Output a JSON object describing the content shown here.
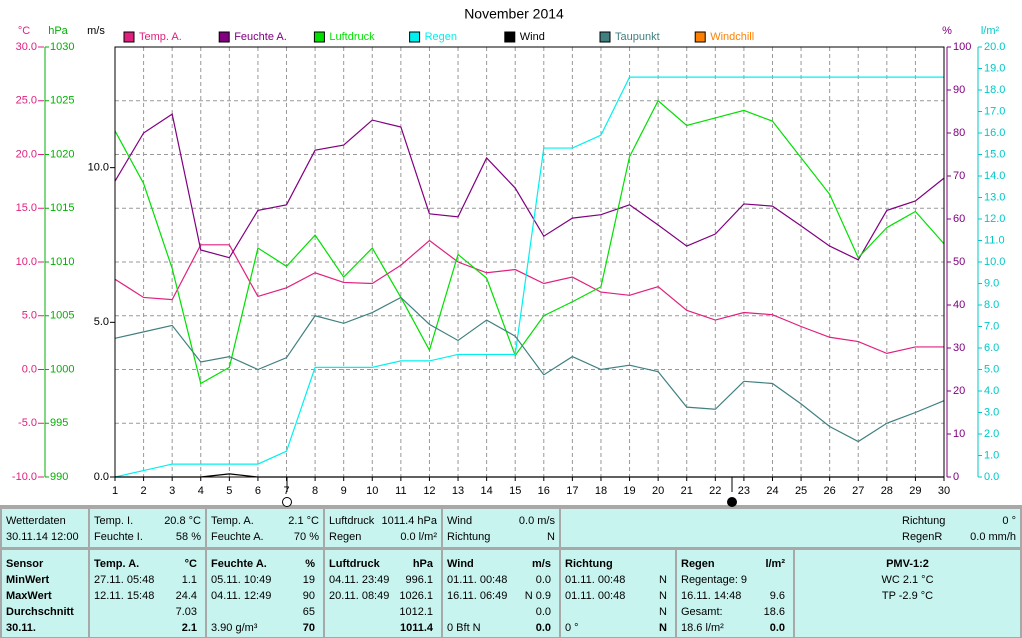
{
  "chart_data": {
    "type": "line",
    "title": "November 2014",
    "grid": true,
    "x": [
      1,
      2,
      3,
      4,
      5,
      6,
      7,
      8,
      9,
      10,
      11,
      12,
      13,
      14,
      15,
      16,
      17,
      18,
      19,
      20,
      21,
      22,
      23,
      24,
      25,
      26,
      27,
      28,
      29,
      30
    ],
    "xlim": [
      1,
      30
    ],
    "xticks": [
      1,
      2,
      3,
      4,
      5,
      6,
      7,
      8,
      9,
      10,
      11,
      12,
      13,
      14,
      15,
      16,
      17,
      18,
      19,
      20,
      21,
      22,
      23,
      24,
      25,
      26,
      27,
      28,
      29,
      30
    ],
    "axes": [
      {
        "unit": "°C",
        "color": "#e0207e",
        "ylim": [
          -10,
          30
        ],
        "yticks": [
          {
            "value": 30,
            "label": "30.0"
          },
          {
            "value": 25,
            "label": "25.0"
          },
          {
            "value": 20,
            "label": "20.0"
          },
          {
            "value": 15,
            "label": "15.0"
          },
          {
            "value": 10,
            "label": "10.0"
          },
          {
            "value": 5,
            "label": "5.0"
          },
          {
            "value": 0,
            "label": "0.0"
          },
          {
            "value": -5,
            "label": "-5.0"
          },
          {
            "value": -10,
            "label": "-10.0"
          }
        ]
      },
      {
        "unit": "hPa",
        "color": "#00b000",
        "ylim": [
          990,
          1030
        ],
        "yticks": [
          1030,
          1025,
          1020,
          1015,
          1010,
          1005,
          1000,
          995,
          990
        ]
      },
      {
        "unit": "m/s",
        "color": "#000000",
        "ylim": [
          0,
          13.9
        ],
        "yticks": [
          {
            "value": 10,
            "label": "10.0"
          },
          {
            "value": 5,
            "label": "5.0"
          },
          {
            "value": 0,
            "label": "0.0"
          }
        ]
      },
      {
        "unit": "%",
        "color": "#800080",
        "ylim": [
          0,
          100
        ],
        "yticks": [
          100,
          90,
          80,
          70,
          60,
          50,
          40,
          30,
          20,
          10,
          0
        ]
      },
      {
        "unit": "l/m²",
        "color": "#00c8c8",
        "ylim": [
          0,
          20
        ],
        "yticks": [
          {
            "value": 20,
            "label": "20.0"
          },
          {
            "value": 19,
            "label": "19.0"
          },
          {
            "value": 18,
            "label": "18.0"
          },
          {
            "value": 17,
            "label": "17.0"
          },
          {
            "value": 16,
            "label": "16.0"
          },
          {
            "value": 15,
            "label": "15.0"
          },
          {
            "value": 14,
            "label": "14.0"
          },
          {
            "value": 13,
            "label": "13.0"
          },
          {
            "value": 12,
            "label": "12.0"
          },
          {
            "value": 11,
            "label": "11.0"
          },
          {
            "value": 10,
            "label": "10.0"
          },
          {
            "value": 9,
            "label": "9.0"
          },
          {
            "value": 8,
            "label": "8.0"
          },
          {
            "value": 7,
            "label": "7.0"
          },
          {
            "value": 6,
            "label": "6.0"
          },
          {
            "value": 5,
            "label": "5.0"
          },
          {
            "value": 4,
            "label": "4.0"
          },
          {
            "value": 3,
            "label": "3.0"
          },
          {
            "value": 2,
            "label": "2.0"
          },
          {
            "value": 1,
            "label": "1.0"
          },
          {
            "value": 0,
            "label": "0.0"
          }
        ]
      }
    ],
    "series": [
      {
        "name": "Temp. A.",
        "color": "#e0207e",
        "axis": "°C",
        "values": [
          8.4,
          6.7,
          6.5,
          11.6,
          11.6,
          6.8,
          7.6,
          9.0,
          8.1,
          8.0,
          9.7,
          12.0,
          10.0,
          9.0,
          9.3,
          8.0,
          8.6,
          7.2,
          6.9,
          7.7,
          5.5,
          4.6,
          5.3,
          5.1,
          4.0,
          3.0,
          2.6,
          1.5,
          2.1,
          2.1
        ]
      },
      {
        "name": "Feuchte A.",
        "color": "#800080",
        "axis": "%",
        "values": [
          68.8,
          80,
          84.4,
          52.8,
          51,
          62,
          63.3,
          76,
          77.2,
          83,
          81.4,
          61.2,
          60.5,
          74.2,
          67.2,
          56,
          60.2,
          61,
          63.3,
          58.6,
          53.7,
          56.5,
          63.5,
          63,
          58.4,
          53.7,
          50.5,
          62,
          64.2,
          69.5
        ]
      },
      {
        "name": "Luftdruck",
        "color": "#00e000",
        "axis": "hPa",
        "values": [
          1022.2,
          1017.3,
          1009.4,
          998.7,
          1000.2,
          1011.3,
          1009.6,
          1012.5,
          1008.6,
          1011.3,
          1006.7,
          1001.8,
          1010.7,
          1008.5,
          1001.3,
          1005,
          1006.3,
          1007.7,
          1019.8,
          1025,
          1022.7,
          1023.4,
          1024.1,
          1023.1,
          1019.7,
          1016.3,
          1010.4,
          1013.2,
          1014.7,
          1011.7
        ]
      },
      {
        "name": "Regen",
        "color": "#00f0f0",
        "axis": "l/m²",
        "values": [
          0,
          0.3,
          0.6,
          0.6,
          0.6,
          0.6,
          1.2,
          5.1,
          5.1,
          5.1,
          5.4,
          5.4,
          5.7,
          5.7,
          5.7,
          15.3,
          15.3,
          15.9,
          18.6,
          18.6,
          18.6,
          18.6,
          18.6,
          18.6,
          18.6,
          18.6,
          18.6,
          18.6,
          18.6,
          18.6
        ]
      },
      {
        "name": "Wind",
        "color": "#000000",
        "axis": "m/s",
        "values": [
          0,
          0,
          0,
          0,
          0.1,
          0,
          0,
          0,
          0,
          0,
          0,
          0,
          0,
          0,
          0,
          0,
          0,
          0,
          0,
          0,
          0,
          0,
          0,
          0,
          0,
          0,
          0,
          0,
          0,
          0
        ]
      },
      {
        "name": "Taupunkt",
        "color": "#408080",
        "axis": "°C",
        "values": [
          2.9,
          3.5,
          4.1,
          0.7,
          1.2,
          0.0,
          1.1,
          5.0,
          4.3,
          5.3,
          6.7,
          4.2,
          2.7,
          4.6,
          3.1,
          -0.5,
          1.2,
          0.0,
          0.4,
          -0.2,
          -3.5,
          -3.7,
          -1.1,
          -1.3,
          -3.2,
          -5.3,
          -6.7,
          -5.0,
          -4.0,
          -2.9
        ]
      },
      {
        "name": "Windchill",
        "color": "#ff8000",
        "axis": "°C",
        "values": [
          null,
          null,
          null,
          null,
          null,
          null,
          null,
          null,
          null,
          null,
          null,
          null,
          null,
          null,
          null,
          null,
          null,
          null,
          null,
          null,
          null,
          null,
          null,
          null,
          null,
          null,
          null,
          null,
          null,
          null
        ]
      }
    ]
  },
  "status": {
    "panels": [
      {
        "rows": [
          {
            "label": "Wetterdaten"
          },
          {
            "label": "30.11.14 12:00"
          }
        ]
      },
      {
        "rows": [
          {
            "label": "Temp. I.",
            "value": "20.8 °C"
          },
          {
            "label": "Feuchte I.",
            "value": "58 %"
          }
        ]
      },
      {
        "rows": [
          {
            "label": "Temp. A.",
            "value": "2.1 °C"
          },
          {
            "label": "Feuchte A.",
            "value": "70 %"
          }
        ]
      },
      {
        "rows": [
          {
            "label": "Luftdruck",
            "value": "1011.4 hPa"
          },
          {
            "label": "Regen",
            "value": "0.0 l/m²"
          }
        ]
      },
      {
        "rows": [
          {
            "label": "Wind",
            "value": "0.0 m/s"
          },
          {
            "label": "Richtung",
            "value": "N"
          }
        ]
      },
      {
        "rows": [
          {
            "label": "Richtung",
            "value": "0 °"
          },
          {
            "label": "RegenR",
            "value": "0.0 mm/h"
          }
        ]
      }
    ]
  },
  "stats": {
    "panels": [
      {
        "rows": [
          {
            "label": "Sensor"
          },
          {
            "label": "MinWert"
          },
          {
            "label": "MaxWert"
          },
          {
            "label": "Durchschnitt"
          },
          {
            "label": "30.11."
          }
        ]
      },
      {
        "rows": [
          {
            "label": "Temp. A.",
            "value": "°C"
          },
          {
            "label": "27.11.  05:48",
            "value": "1.1"
          },
          {
            "label": "12.11.  15:48",
            "value": "24.4"
          },
          {
            "value": "7.03"
          },
          {
            "value": "2.1"
          }
        ]
      },
      {
        "rows": [
          {
            "label": "Feuchte A.",
            "value": "%"
          },
          {
            "label": "05.11.  10:49",
            "value": "19"
          },
          {
            "label": "04.11.  12:49",
            "value": "90"
          },
          {
            "value": "65"
          },
          {
            "label": "3.90 g/m³",
            "value": "70"
          }
        ]
      },
      {
        "rows": [
          {
            "label": "Luftdruck",
            "value": "hPa"
          },
          {
            "label": "04.11.  23:49",
            "value": "996.1"
          },
          {
            "label": "20.11.  08:49",
            "value": "1026.1"
          },
          {
            "value": "1012.1"
          },
          {
            "value": "1011.4"
          }
        ]
      },
      {
        "rows": [
          {
            "label": "Wind",
            "value": "m/s"
          },
          {
            "label": "01.11.  00:48",
            "value": "0.0"
          },
          {
            "label": "16.11.  06:49",
            "value": "N 0.9"
          },
          {
            "value": "0.0"
          },
          {
            "label": "0 Bft N",
            "value": "0.0"
          }
        ]
      },
      {
        "rows": [
          {
            "label": "Richtung"
          },
          {
            "label": "01.11.  00:48",
            "value": "N"
          },
          {
            "label": "01.11.  00:48",
            "value": "N"
          },
          {
            "value": "N"
          },
          {
            "label": "0 °",
            "value": "N"
          }
        ]
      },
      {
        "rows": [
          {
            "label": "Regen",
            "value": "l/m²"
          },
          {
            "label": "Regentage: 9"
          },
          {
            "label": "16.11.  14:48",
            "value": "9.6"
          },
          {
            "label": "Gesamt:",
            "value": "18.6"
          },
          {
            "label": "18.6 l/m²",
            "value": "0.0"
          }
        ]
      },
      {
        "rows": [
          {
            "label": "PMV-1:2"
          },
          {
            "label": "WC 2.1 °C"
          },
          {
            "label": "TP -2.9 °C"
          }
        ]
      }
    ]
  }
}
